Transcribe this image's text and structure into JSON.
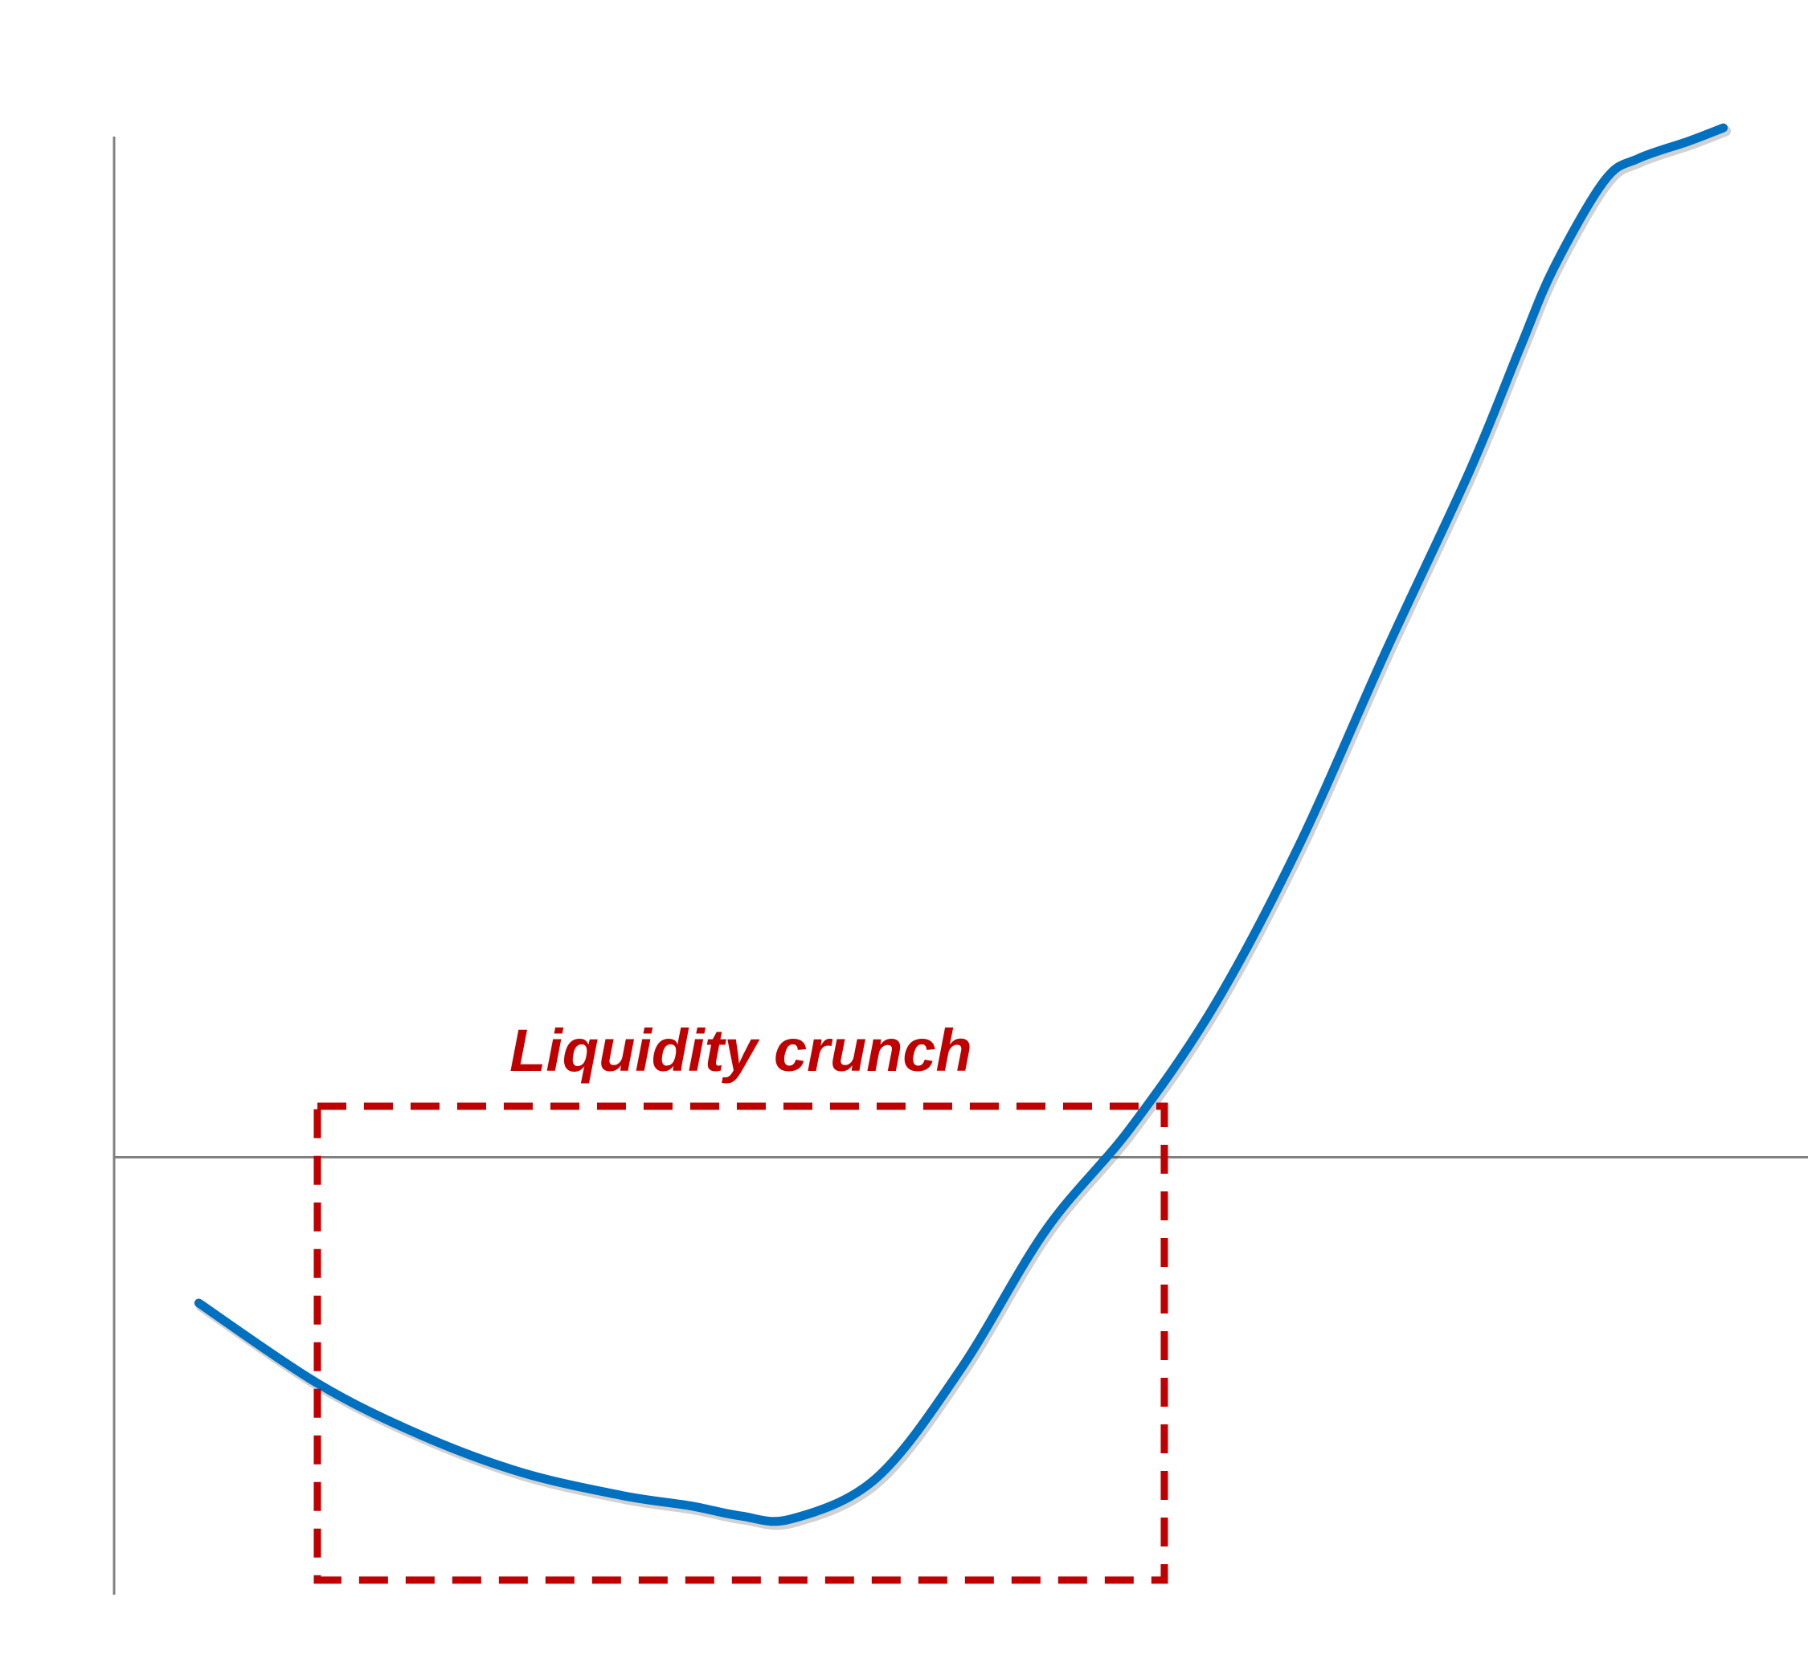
{
  "chart_data": {
    "type": "line",
    "title": "",
    "xlabel": "",
    "ylabel": "",
    "grid": false,
    "legend": "none",
    "xlim": [
      0,
      100
    ],
    "ylim": [
      -30,
      70
    ],
    "series": [
      {
        "color": "#0070c0",
        "x": [
          5,
          12,
          18,
          24,
          30,
          34,
          37,
          40,
          45,
          50,
          55,
          60,
          65,
          70,
          75,
          80,
          83,
          85,
          88,
          90,
          93,
          95
        ],
        "y": [
          -10,
          -15.5,
          -19,
          -21.6,
          -23.2,
          -23.9,
          -24.6,
          -24.8,
          -22,
          -14.5,
          -5,
          2,
          10.5,
          21.5,
          34.5,
          47,
          55.5,
          61,
          67,
          68.5,
          69.7,
          70.6
        ]
      }
    ],
    "annotations": [
      {
        "text": "Liquidity crunch",
        "color": "#c00000",
        "region": {
          "x": [
            12,
            62
          ],
          "y": [
            3.5,
            -29
          ]
        }
      }
    ]
  }
}
